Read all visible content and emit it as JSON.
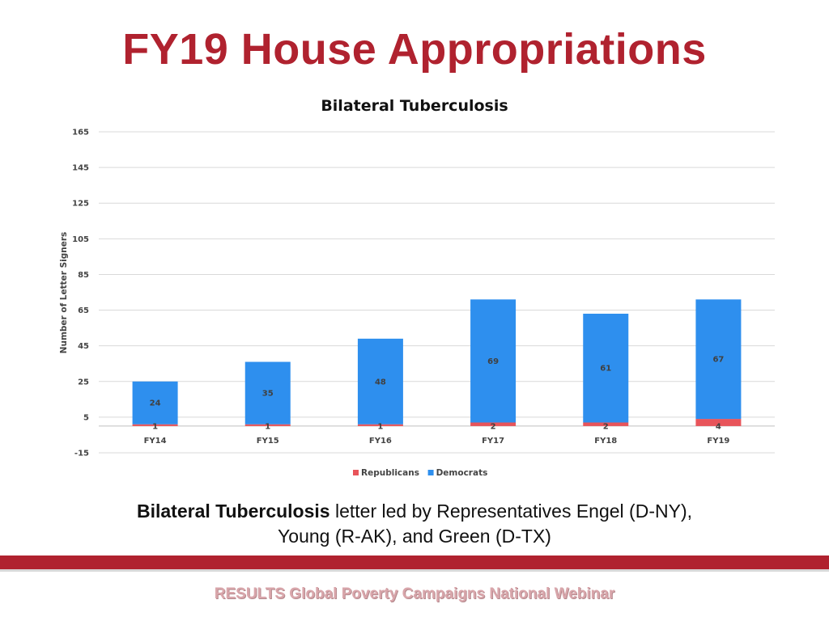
{
  "slide": {
    "title": "FY19 House Appropriations",
    "caption_bold": "Bilateral Tuberculosis",
    "caption_line1_rest": " letter led by Representatives Engel (D-NY),",
    "caption_line2": "Young (R-AK), and Green (D-TX)",
    "footer": "RESULTS Global Poverty Campaigns National Webinar",
    "colors": {
      "title": "#b0222f",
      "bar": "#b0222f",
      "republicans": "#e8545a",
      "democrats": "#2e8fee"
    }
  },
  "chart_data": {
    "type": "bar",
    "stacked": true,
    "title": "Bilateral Tuberculosis",
    "xlabel": "",
    "ylabel": "Number of Letter Signers",
    "categories": [
      "FY14",
      "FY15",
      "FY16",
      "FY17",
      "FY18",
      "FY19"
    ],
    "series": [
      {
        "name": "Republicans",
        "values": [
          1,
          1,
          1,
          2,
          2,
          4
        ],
        "color": "#e8545a"
      },
      {
        "name": "Democrats",
        "values": [
          24,
          35,
          48,
          69,
          61,
          67
        ],
        "color": "#2e8fee"
      }
    ],
    "ylim": [
      -15,
      165
    ],
    "yticks": [
      -15,
      5,
      25,
      45,
      65,
      85,
      105,
      125,
      145,
      165
    ],
    "grid": true,
    "legend": "bottom"
  }
}
